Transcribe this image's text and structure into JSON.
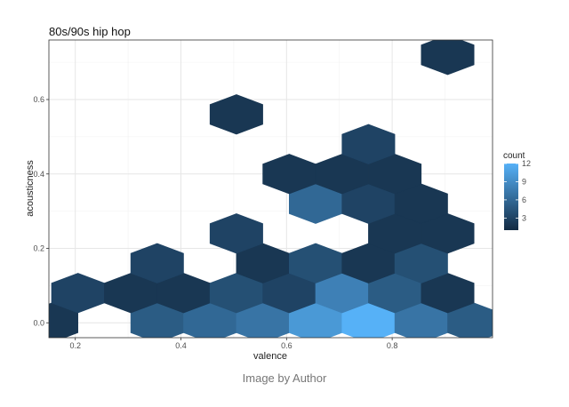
{
  "caption": "Image by Author",
  "chart_data": {
    "type": "heatmap",
    "title": "80s/90s hip hop",
    "xlabel": "valence",
    "ylabel": "acousticness",
    "xlim": [
      0.15,
      0.99
    ],
    "ylim": [
      -0.04,
      0.76
    ],
    "x_ticks": [
      0.2,
      0.4,
      0.6,
      0.8
    ],
    "x_tick_labels": [
      "0.2",
      "0.4",
      "0.6",
      "0.8"
    ],
    "y_ticks": [
      0.0,
      0.2,
      0.4,
      0.6
    ],
    "y_tick_labels": [
      "0.0",
      "0.2",
      "0.4",
      "0.6"
    ],
    "grid": true,
    "legend": {
      "title": "count",
      "position": "right",
      "min": 1,
      "max": 12,
      "ticks": [
        3,
        6,
        9,
        12
      ],
      "low_color": "#132B43",
      "high_color": "#56B1F7"
    },
    "bins": [
      {
        "x": 0.155,
        "y": 0.0,
        "count": 2
      },
      {
        "x": 0.355,
        "y": 0.0,
        "count": 5
      },
      {
        "x": 0.455,
        "y": 0.0,
        "count": 6
      },
      {
        "x": 0.555,
        "y": 0.0,
        "count": 7
      },
      {
        "x": 0.655,
        "y": 0.0,
        "count": 10
      },
      {
        "x": 0.755,
        "y": 0.0,
        "count": 12
      },
      {
        "x": 0.855,
        "y": 0.0,
        "count": 7
      },
      {
        "x": 0.955,
        "y": 0.0,
        "count": 5
      },
      {
        "x": 0.205,
        "y": 0.08,
        "count": 3
      },
      {
        "x": 0.305,
        "y": 0.08,
        "count": 2
      },
      {
        "x": 0.405,
        "y": 0.08,
        "count": 2
      },
      {
        "x": 0.505,
        "y": 0.08,
        "count": 4
      },
      {
        "x": 0.605,
        "y": 0.08,
        "count": 3
      },
      {
        "x": 0.705,
        "y": 0.08,
        "count": 8
      },
      {
        "x": 0.805,
        "y": 0.08,
        "count": 5
      },
      {
        "x": 0.905,
        "y": 0.08,
        "count": 2
      },
      {
        "x": 0.355,
        "y": 0.16,
        "count": 3
      },
      {
        "x": 0.555,
        "y": 0.16,
        "count": 2
      },
      {
        "x": 0.655,
        "y": 0.16,
        "count": 4
      },
      {
        "x": 0.755,
        "y": 0.16,
        "count": 2
      },
      {
        "x": 0.855,
        "y": 0.16,
        "count": 4
      },
      {
        "x": 0.505,
        "y": 0.24,
        "count": 3
      },
      {
        "x": 0.805,
        "y": 0.24,
        "count": 2
      },
      {
        "x": 0.905,
        "y": 0.24,
        "count": 2
      },
      {
        "x": 0.655,
        "y": 0.32,
        "count": 6
      },
      {
        "x": 0.755,
        "y": 0.32,
        "count": 3
      },
      {
        "x": 0.855,
        "y": 0.32,
        "count": 2
      },
      {
        "x": 0.605,
        "y": 0.4,
        "count": 2
      },
      {
        "x": 0.705,
        "y": 0.4,
        "count": 2
      },
      {
        "x": 0.805,
        "y": 0.4,
        "count": 2
      },
      {
        "x": 0.755,
        "y": 0.48,
        "count": 3
      },
      {
        "x": 0.505,
        "y": 0.56,
        "count": 2
      },
      {
        "x": 0.905,
        "y": 0.72,
        "count": 2
      }
    ]
  }
}
